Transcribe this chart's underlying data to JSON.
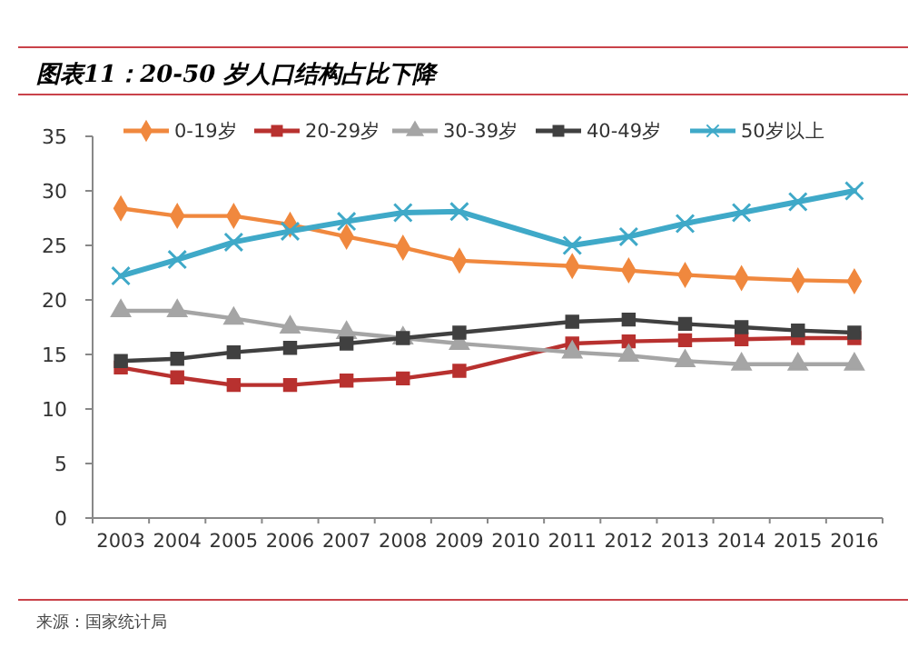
{
  "chart_data": {
    "type": "line",
    "title": "图表11：20-50 岁人口结构占比下降",
    "annotations": [
      "来源：国家统计局"
    ],
    "categories": [
      "2003",
      "2004",
      "2005",
      "2006",
      "2007",
      "2008",
      "2009",
      "2010",
      "2011",
      "2012",
      "2013",
      "2014",
      "2015",
      "2016"
    ],
    "ylim": [
      0,
      35
    ],
    "yticks": [
      0,
      5,
      10,
      15,
      20,
      25,
      30,
      35
    ],
    "grid": false,
    "legend": "top",
    "series": [
      {
        "name": "0-19岁",
        "color": "#f0883e",
        "marker": "diamond",
        "values": [
          28.4,
          27.7,
          27.7,
          26.9,
          25.8,
          24.8,
          23.6,
          null,
          23.1,
          22.7,
          22.3,
          22.0,
          21.8,
          21.7
        ]
      },
      {
        "name": "20-29岁",
        "color": "#b8312f",
        "marker": "square",
        "values": [
          13.8,
          12.9,
          12.2,
          12.2,
          12.6,
          12.8,
          13.5,
          null,
          16.0,
          16.2,
          16.3,
          16.4,
          16.5,
          16.5
        ]
      },
      {
        "name": "30-39岁",
        "color": "#a5a5a5",
        "marker": "triangle",
        "values": [
          19.0,
          19.0,
          18.3,
          17.5,
          17.0,
          16.5,
          16.0,
          null,
          15.2,
          14.9,
          14.4,
          14.1,
          14.1,
          14.1
        ]
      },
      {
        "name": "40-49岁",
        "color": "#404040",
        "marker": "square",
        "values": [
          14.4,
          14.6,
          15.2,
          15.6,
          16.0,
          16.5,
          17.0,
          null,
          18.0,
          18.2,
          17.8,
          17.5,
          17.2,
          17.0
        ]
      },
      {
        "name": "50岁以上",
        "color": "#3fa9c8",
        "marker": "cross",
        "values": [
          22.2,
          23.7,
          25.3,
          26.3,
          27.2,
          28.0,
          28.1,
          null,
          25.0,
          25.8,
          27.0,
          28.0,
          29.0,
          30.0
        ]
      }
    ]
  }
}
